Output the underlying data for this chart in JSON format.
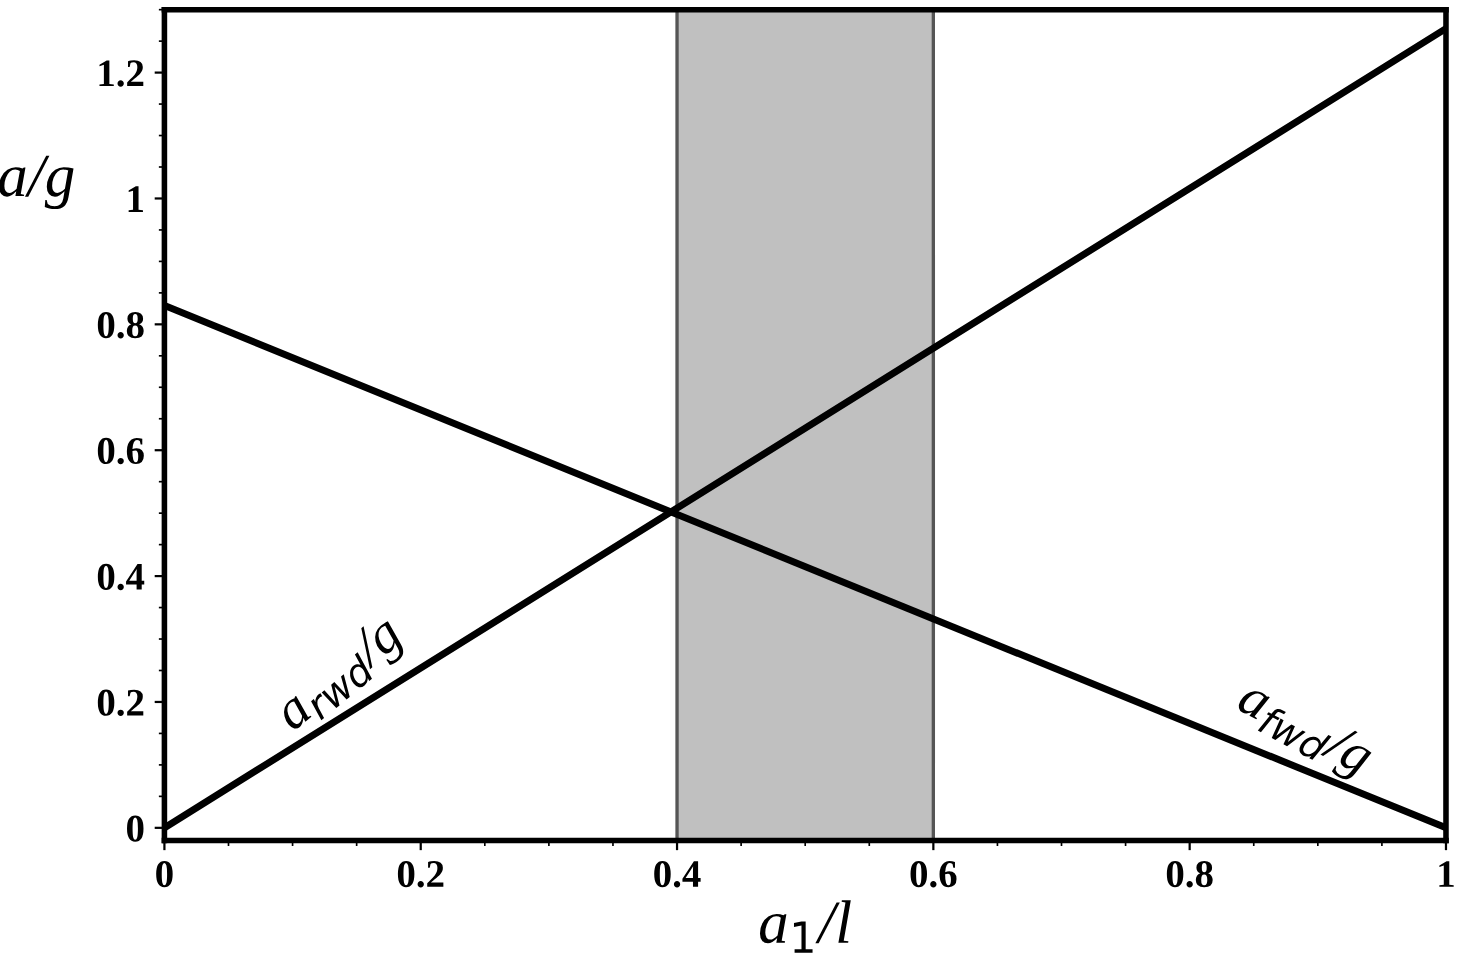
{
  "chart_data": {
    "type": "line",
    "xlabel": "a$_{1}$/l",
    "ylabel": "a/g",
    "x": [
      0,
      1
    ],
    "series": [
      {
        "name": "a$_{rwd}$/g",
        "color": "#000000",
        "values": [
          0,
          1.27
        ]
      },
      {
        "name": "a$_{fwd}$/g",
        "color": "#000000",
        "values": [
          0.83,
          0
        ]
      }
    ],
    "bands": [
      {
        "axis": "x",
        "from": 0.4,
        "to": 0.6,
        "color": "#c0c0c0"
      }
    ],
    "xlim": [
      0,
      1
    ],
    "ylim": [
      -0.02,
      1.3
    ],
    "xticks": [
      0,
      0.2,
      0.4,
      0.6,
      0.8,
      1
    ],
    "yticks": [
      0,
      0.2,
      0.4,
      0.6,
      0.8,
      1,
      1.2
    ],
    "grid": false,
    "legend": false,
    "marker": "none",
    "line_style": "solid"
  }
}
